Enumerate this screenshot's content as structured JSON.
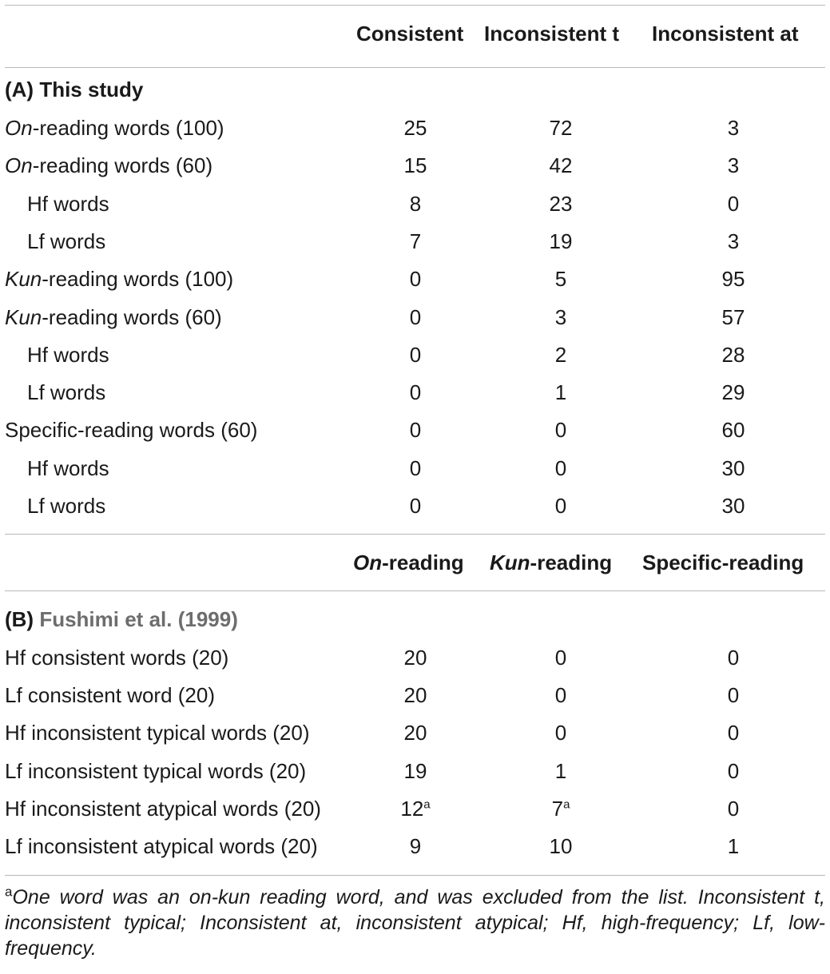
{
  "table_a": {
    "headers": [
      "Consistent",
      "Inconsistent t",
      "Inconsistent at"
    ],
    "section_label": "(A) This study",
    "rows": [
      {
        "em": "On",
        "label": "-reading words (100)",
        "v": [
          "25",
          "72",
          "3"
        ]
      },
      {
        "em": "On",
        "label": "-reading words (60)",
        "v": [
          "15",
          "42",
          "3"
        ]
      },
      {
        "em": "",
        "label": "Hf words",
        "v": [
          "8",
          "23",
          "0"
        ]
      },
      {
        "em": "",
        "label": "Lf words",
        "v": [
          "7",
          "19",
          "3"
        ]
      },
      {
        "em": "Kun",
        "label": "-reading words (100)",
        "v": [
          "0",
          "5",
          "95"
        ]
      },
      {
        "em": "Kun",
        "label": "-reading words (60)",
        "v": [
          "0",
          "3",
          "57"
        ]
      },
      {
        "em": "",
        "label": "Hf words",
        "v": [
          "0",
          "2",
          "28"
        ]
      },
      {
        "em": "",
        "label": "Lf words",
        "v": [
          "0",
          "1",
          "29"
        ]
      },
      {
        "em": "",
        "label": "Specific-reading words (60)",
        "v": [
          "0",
          "0",
          "60"
        ]
      },
      {
        "em": "",
        "label": "Hf words",
        "v": [
          "0",
          "0",
          "30"
        ]
      },
      {
        "em": "",
        "label": "Lf words",
        "v": [
          "0",
          "0",
          "30"
        ]
      }
    ]
  },
  "table_b": {
    "headers": [
      {
        "em": "On",
        "rest": "-reading"
      },
      {
        "em": "Kun",
        "rest": "-reading"
      },
      {
        "em": "",
        "rest": "Specific-reading"
      }
    ],
    "section_prefix": "(B)",
    "section_cite": "Fushimi et al. (1999)",
    "rows": [
      {
        "label": "Hf consistent words (20)",
        "v": [
          "20",
          "0",
          "0"
        ]
      },
      {
        "label": "Lf consistent word (20)",
        "v": [
          "20",
          "0",
          "0"
        ]
      },
      {
        "label": "Hf inconsistent typical words (20)",
        "v": [
          "20",
          "0",
          "0"
        ]
      },
      {
        "label": "Lf inconsistent typical words (20)",
        "v": [
          "19",
          "1",
          "0"
        ]
      },
      {
        "label": "Hf inconsistent atypical words (20)",
        "v": [
          "12",
          "7",
          "0"
        ],
        "sup": [
          "a",
          "a",
          ""
        ]
      },
      {
        "label": "Lf inconsistent atypical words (20)",
        "v": [
          "9",
          "10",
          "1"
        ]
      }
    ]
  },
  "footnote": {
    "mark": "a",
    "text": "One word was an on-kun reading word, and was excluded from the list. Inconsistent t, inconsistent typical; Inconsistent at, inconsistent atypical; Hf, high-frequency; Lf, low-frequency."
  }
}
